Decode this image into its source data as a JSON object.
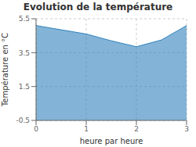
{
  "chart_data": {
    "type": "area",
    "title": "Evolution de la température",
    "xlabel": "heure par heure",
    "ylabel": "Température en °C",
    "x": [
      0,
      0.5,
      1,
      1.5,
      2,
      2.5,
      3
    ],
    "values": [
      5.1,
      4.85,
      4.6,
      4.2,
      3.85,
      4.25,
      5.1
    ],
    "xlim": [
      0,
      3
    ],
    "ylim": [
      -0.5,
      5.5
    ],
    "xticks": [
      0,
      1,
      2,
      3
    ],
    "yticks": [
      -0.5,
      1.5,
      3.5,
      5.5
    ],
    "grid": true
  }
}
